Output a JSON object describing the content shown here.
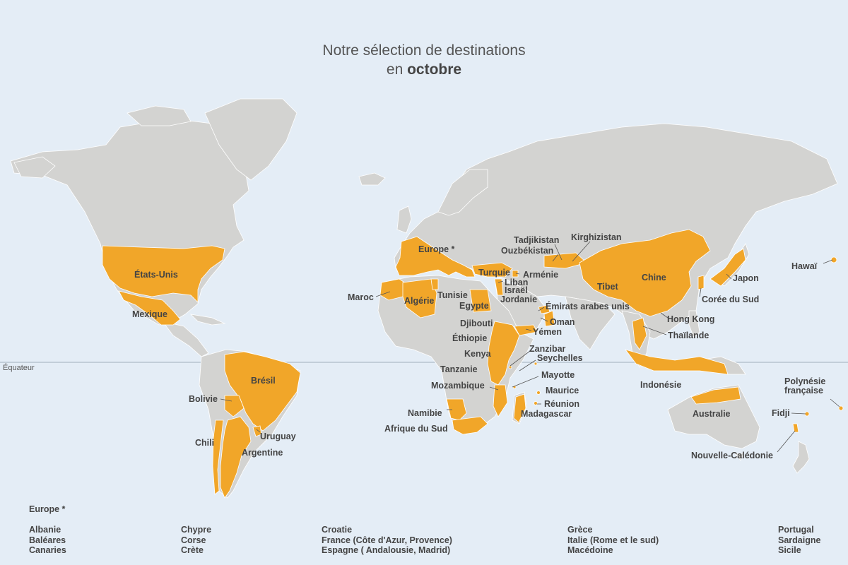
{
  "title": {
    "line1": "Notre sélection de destinations",
    "line2_prefix": "en ",
    "line2_bold": "octobre"
  },
  "colors": {
    "ocean": "#e4edf6",
    "land": "#d3d3d1",
    "highlight": "#f1a629",
    "text": "#444444"
  },
  "equator_label": "Équateur",
  "labels": {
    "usa": "États-Unis",
    "mexique": "Mexique",
    "bresil": "Brésil",
    "bolivie": "Bolivie",
    "chili": "Chili",
    "uruguay": "Uruguay",
    "argentine": "Argentine",
    "europe": "Europe *",
    "maroc": "Maroc",
    "algerie": "Algérie",
    "tunisie": "Tunisie",
    "egypte": "Egypte",
    "turquie": "Turquie",
    "liban": "Liban",
    "israel": "Israël",
    "jordanie": "Jordanie",
    "armenie": "Arménie",
    "tadjikistan": "Tadjikistan",
    "ouzbekistan": "Ouzbékistan",
    "kirghizistan": "Kirghizistan",
    "emirats": "Émirats arabes unis",
    "oman": "Oman",
    "yemen": "Yémen",
    "djibouti": "Djibouti",
    "ethiopie": "Éthiopie",
    "kenya": "Kenya",
    "tanzanie": "Tanzanie",
    "zanzibar": "Zanzibar",
    "seychelles": "Seychelles",
    "mozambique": "Mozambique",
    "mayotte": "Mayotte",
    "maurice": "Maurice",
    "reunion": "Réunion",
    "madagascar": "Madagascar",
    "namibie": "Namibie",
    "afrique_sud": "Afrique du Sud",
    "tibet": "Tibet",
    "chine": "Chine",
    "hong_kong": "Hong Kong",
    "thailande": "Thaïlande",
    "japon": "Japon",
    "coree": "Corée du Sud",
    "indonesie": "Indonésie",
    "australie": "Australie",
    "hawai": "Hawaï",
    "polynesie1": "Polynésie",
    "polynesie2": "française",
    "fidji": "Fidji",
    "nouvelle_caledonie": "Nouvelle-Calédonie"
  },
  "legend": {
    "heading": "Europe *",
    "col1": [
      "Albanie",
      "Baléares",
      "Canaries"
    ],
    "col2": [
      "Chypre",
      "Corse",
      "Crète"
    ],
    "col3": [
      "Croatie",
      "France (Côte d'Azur, Provence)",
      "Espagne ( Andalousie, Madrid)"
    ],
    "col4": [
      "Grèce",
      "Italie (Rome et le sud)",
      "Macédoine"
    ],
    "col5": [
      "Portugal",
      "Sardaigne",
      "Sicile"
    ]
  }
}
